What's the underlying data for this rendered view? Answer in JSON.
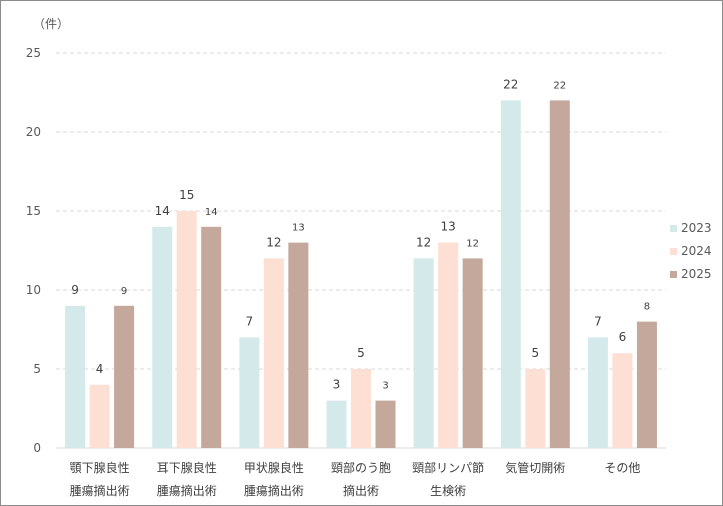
{
  "chart_data": {
    "type": "bar",
    "unit_label": "（件）",
    "categories": [
      [
        "顎下腺良性",
        "腫瘍摘出術"
      ],
      [
        "耳下腺良性",
        "腫瘍摘出術"
      ],
      [
        "甲状腺良性",
        "腫瘍摘出術"
      ],
      [
        "頸部のう胞",
        "摘出術"
      ],
      [
        "頸部リンパ節",
        "生検術"
      ],
      [
        "気管切開術"
      ],
      [
        "その他"
      ]
    ],
    "series": [
      {
        "name": "2023",
        "color": "#d4e9ea",
        "values": [
          9,
          14,
          7,
          3,
          12,
          22,
          7
        ]
      },
      {
        "name": "2024",
        "color": "#fde0d3",
        "values": [
          4,
          15,
          12,
          5,
          13,
          5,
          6
        ]
      },
      {
        "name": "2025",
        "color": "#c4a89b",
        "values": [
          9,
          14,
          13,
          3,
          12,
          22,
          8
        ]
      }
    ],
    "ylim": [
      0,
      25
    ],
    "yticks": [
      0,
      5,
      10,
      15,
      20,
      25
    ],
    "grid": true,
    "legend": "right"
  }
}
